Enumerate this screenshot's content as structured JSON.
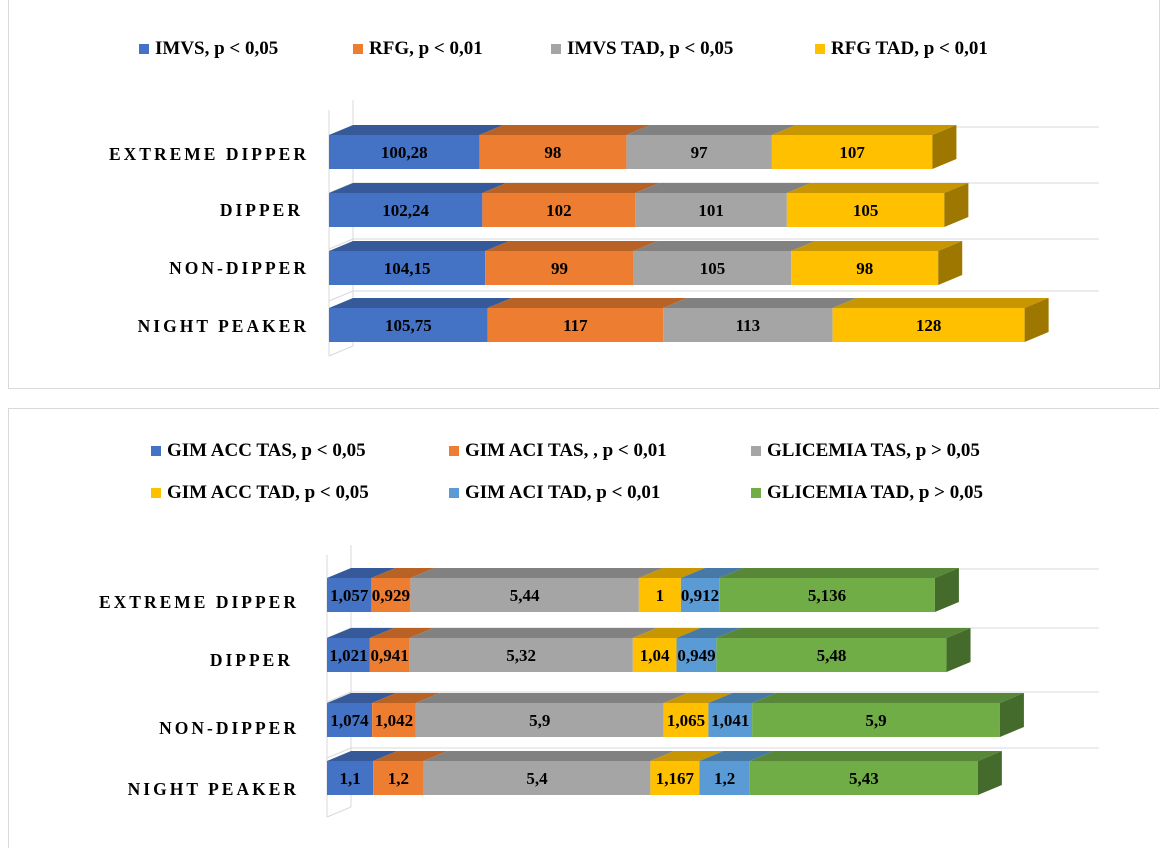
{
  "chart_data": [
    {
      "type": "bar",
      "orientation": "horizontal",
      "stacked": true,
      "style": "3d",
      "categories": [
        "EXTREME DIPPER",
        "DIPPER",
        "NON-DIPPER",
        "NIGHT PEAKER"
      ],
      "series": [
        {
          "name": "IMVS, p < 0,05",
          "color": "#4472c4",
          "values": [
            100.28,
            102.24,
            104.15,
            105.75
          ],
          "labels": [
            "100,28",
            "102,24",
            "104,15",
            "105,75"
          ]
        },
        {
          "name": "RFG, p < 0,01",
          "color": "#ed7d31",
          "values": [
            98,
            102,
            99,
            117
          ],
          "labels": [
            "98",
            "102",
            "99",
            "117"
          ]
        },
        {
          "name": "IMVS TAD, p < 0,05",
          "color": "#a5a5a5",
          "values": [
            97,
            101,
            105,
            113
          ],
          "labels": [
            "97",
            "101",
            "105",
            "113"
          ]
        },
        {
          "name": "RFG TAD,  p < 0,01",
          "color": "#ffc000",
          "values": [
            107,
            105,
            98,
            128
          ],
          "labels": [
            "107",
            "105",
            "98",
            "128"
          ]
        }
      ],
      "legend": "top",
      "grid": true
    },
    {
      "type": "bar",
      "orientation": "horizontal",
      "stacked": true,
      "style": "3d",
      "categories": [
        "EXTREME DIPPER",
        "DIPPER",
        "NON-DIPPER",
        "NIGHT PEAKER"
      ],
      "series": [
        {
          "name": "GIM ACC TAS, p < 0,05",
          "color": "#4472c4",
          "values": [
            1.057,
            1.021,
            1.074,
            1.1
          ],
          "labels": [
            "1,057",
            "1,021",
            "1,074",
            "1,1"
          ]
        },
        {
          "name": "GIM ACI TAS, , p < 0,01",
          "color": "#ed7d31",
          "values": [
            0.929,
            0.941,
            1.042,
            1.2
          ],
          "labels": [
            "0,929",
            "0,941",
            "1,042",
            "1,2"
          ]
        },
        {
          "name": "GLICEMIA TAS, p > 0,05",
          "color": "#a5a5a5",
          "values": [
            5.44,
            5.32,
            5.9,
            5.4
          ],
          "labels": [
            "5,44",
            "5,32",
            "5,9",
            "5,4"
          ]
        },
        {
          "name": "GIM ACC TAD, p < 0,05",
          "color": "#ffc000",
          "values": [
            1,
            1.04,
            1.065,
            1.167
          ],
          "labels": [
            "1",
            "1,04",
            "1,065",
            "1,167"
          ]
        },
        {
          "name": "GIM ACI TAD, p < 0,01",
          "color": "#5b9bd5",
          "values": [
            0.912,
            0.949,
            1.041,
            1.2
          ],
          "labels": [
            "0,912",
            "0,949",
            "1,041",
            "1,2"
          ]
        },
        {
          "name": "GLICEMIA TAD, p > 0,05",
          "color": "#70ad47",
          "values": [
            5.136,
            5.48,
            5.9,
            5.43
          ],
          "labels": [
            "5,136",
            "5,48",
            "5,9",
            "5,43"
          ]
        }
      ],
      "legend": "top",
      "grid": true
    }
  ]
}
